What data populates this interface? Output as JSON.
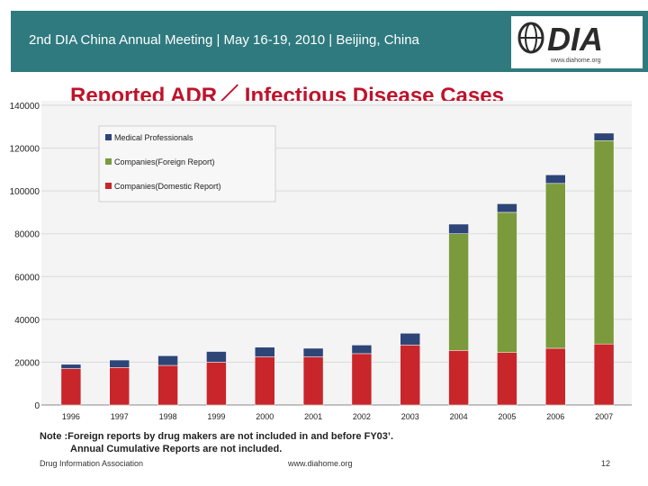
{
  "header": {
    "title": "2nd DIA China Annual Meeting | May 16-19, 2010 | Beijing, China",
    "logo_text": "DIA",
    "logo_url": "www.diahome.org"
  },
  "slide_title": "Reported ADR／ Infectious Disease Cases",
  "chart_data": {
    "type": "bar",
    "stacked": true,
    "title": "Reported ADR／ Infectious Disease Cases",
    "xlabel": "",
    "ylabel": "",
    "categories": [
      "1996",
      "1997",
      "1998",
      "1999",
      "2000",
      "2001",
      "2002",
      "2003",
      "2004",
      "2005",
      "2006",
      "2007"
    ],
    "series": [
      {
        "name": "Companies(Domestic Report)",
        "color": "#c8262a",
        "values": [
          17000,
          17500,
          18500,
          20000,
          22500,
          22500,
          24000,
          28000,
          25500,
          24500,
          26500,
          28500
        ]
      },
      {
        "name": "Companies(Foreign Report)",
        "color": "#7a9a3c",
        "values": [
          0,
          0,
          0,
          0,
          0,
          0,
          0,
          0,
          54500,
          65500,
          77000,
          95000
        ]
      },
      {
        "name": "Medical Professionals",
        "color": "#2e4578",
        "values": [
          2000,
          3500,
          4500,
          5000,
          4500,
          4000,
          4000,
          5500,
          4500,
          4000,
          4000,
          3500
        ]
      }
    ],
    "legend_order": [
      "Medical Professionals",
      "Companies(Foreign Report)",
      "Companies(Domestic Report)"
    ],
    "legend_position": "top-left",
    "ylim": [
      0,
      140000
    ],
    "yticks": [
      0,
      20000,
      40000,
      60000,
      80000,
      100000,
      120000,
      140000
    ]
  },
  "note": {
    "line1": "Note :Foreign reports by drug makers are not included in and before FY03’.",
    "line2": "Annual Cumulative Reports are not included."
  },
  "footer": {
    "left": "Drug Information Association",
    "center": "www.diahome.org",
    "page": "12"
  }
}
